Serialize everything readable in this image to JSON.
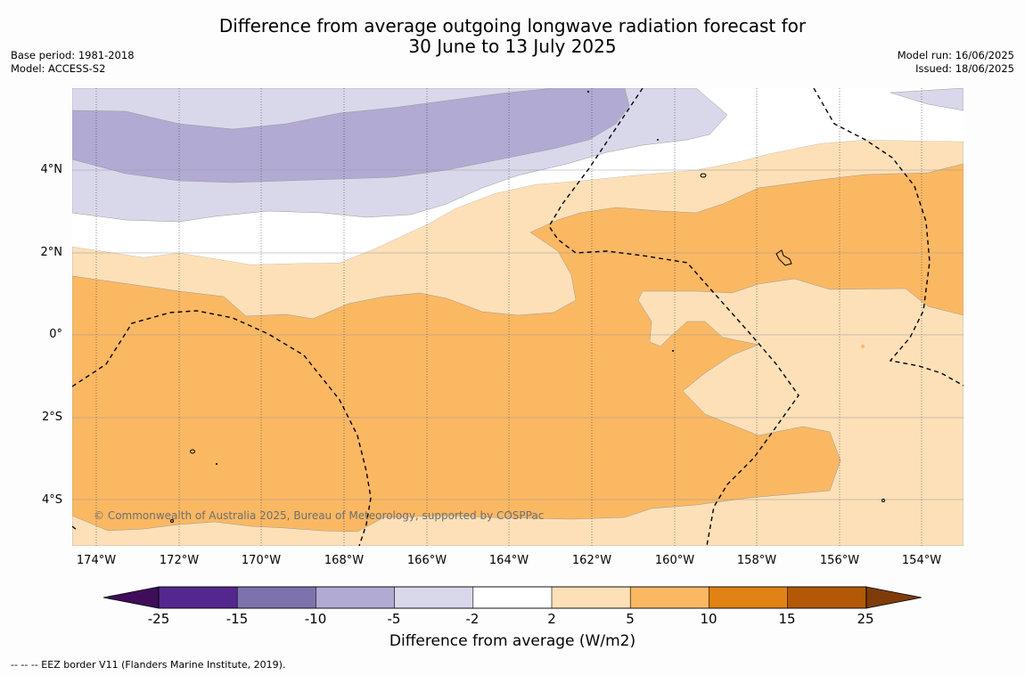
{
  "title": {
    "line1": "Difference from average outgoing longwave radiation forecast for",
    "line2": "30 June to 13 July 2025"
  },
  "meta_left": {
    "base_period": "Base period: 1981-2018",
    "model": "Model: ACCESS-S2"
  },
  "meta_right": {
    "model_run": "Model run: 16/06/2025",
    "issued": "Issued: 18/06/2025"
  },
  "map": {
    "latitude_labels": [
      "4°N",
      "2°N",
      "0°",
      "2°S",
      "4°S"
    ],
    "longitude_labels": [
      "174°W",
      "172°W",
      "170°W",
      "168°W",
      "166°W",
      "164°W",
      "162°W",
      "160°W",
      "158°W",
      "156°W",
      "154°W"
    ],
    "copyright": "© Commonwealth of Australia 2025, Bureau of Meteorology, supported by COSPPac",
    "fill_colors": {
      "purple_mid": "#b1aad3",
      "purple_light": "#d9d8eb",
      "orange_light": "#fde0b7",
      "orange_mid": "#fbb863"
    }
  },
  "colorbar": {
    "tick_labels": [
      "-25",
      "-15",
      "-10",
      "-5",
      "-2",
      "2",
      "5",
      "10",
      "15",
      "25"
    ],
    "colors": [
      "#3f0d5a",
      "#54278f",
      "#7e72ad",
      "#b1aad3",
      "#d9d8eb",
      "#ffffff",
      "#fde0b7",
      "#fbb863",
      "#e08214",
      "#b35806",
      "#7f3b08"
    ],
    "title": "Difference from average (W/m2)"
  },
  "footnote": "--  --  -- EEZ border V11 (Flanders Marine Institute, 2019)."
}
